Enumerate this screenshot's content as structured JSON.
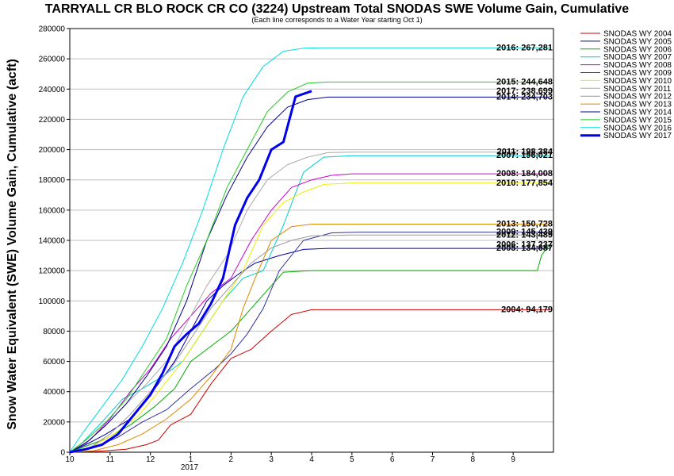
{
  "chart_data": {
    "type": "line",
    "title": "TARRYALL CR BLO ROCK CR CO (3224) Upstream Total SNODAS SWE Volume Gain, Cumulative",
    "subtitle": "(Each line corresponds to a Water Year starting Oct 1)",
    "ylabel": "Snow Water Equivalent (SWE) Volume Gain, Cumulative (acft)",
    "xlabel": "",
    "year_label": "2017",
    "x_ticks": [
      "10",
      "11",
      "12",
      "1",
      "2",
      "3",
      "4",
      "5",
      "6",
      "7",
      "8",
      "9"
    ],
    "x_range_month_index": [
      0,
      12
    ],
    "y_ticks": [
      0,
      20000,
      40000,
      60000,
      80000,
      100000,
      120000,
      140000,
      160000,
      180000,
      200000,
      220000,
      240000,
      260000,
      280000
    ],
    "ylim": [
      0,
      280000
    ],
    "grid": "horizontal",
    "legend_position": "right",
    "series": [
      {
        "name": "SNODAS WY 2004",
        "color": "#cc0000",
        "width": 1,
        "end_label": "2004: 94,179",
        "x": [
          0,
          0.8,
          1.4,
          1.9,
          2.2,
          2.5,
          3.0,
          3.5,
          4.0,
          4.5,
          5.0,
          5.5,
          6.0,
          6.5,
          7.0,
          8.0,
          9.0,
          11.9
        ],
        "y": [
          0,
          800,
          2000,
          5000,
          8000,
          18000,
          25000,
          45000,
          62000,
          68000,
          80000,
          91000,
          94179,
          94179,
          94179,
          94179,
          94179,
          94179
        ]
      },
      {
        "name": "SNODAS WY 2005",
        "color": "#0000aa",
        "width": 1,
        "end_label": "2005: 134,687",
        "x": [
          0,
          0.4,
          0.9,
          1.5,
          2.0,
          2.6,
          3.0,
          3.4,
          3.8,
          4.2,
          4.6,
          5.2,
          5.8,
          6.4,
          7.2,
          8.0,
          11.9
        ],
        "y": [
          0,
          5000,
          12000,
          22000,
          38000,
          60000,
          80000,
          100000,
          110000,
          118000,
          125000,
          130000,
          134000,
          134687,
          134687,
          134687,
          134687
        ]
      },
      {
        "name": "SNODAS WY 2006",
        "color": "#00aa00",
        "width": 1,
        "end_label": "2006: 137,237",
        "x": [
          0,
          0.4,
          0.9,
          1.5,
          2.1,
          2.6,
          3.0,
          3.5,
          4.0,
          4.5,
          5.0,
          5.3,
          6.0,
          7.0,
          8.0,
          9.0,
          11.6,
          11.7,
          11.9
        ],
        "y": [
          0,
          4000,
          9000,
          18000,
          30000,
          42000,
          60000,
          70000,
          80000,
          95000,
          110000,
          119000,
          120000,
          120000,
          120000,
          120000,
          120000,
          130000,
          137237
        ]
      },
      {
        "name": "SNODAS WY 2007",
        "color": "#00cccc",
        "width": 1,
        "end_label": "2007: 196,021",
        "x": [
          0,
          0.3,
          0.8,
          1.3,
          1.8,
          2.3,
          2.8,
          3.3,
          3.8,
          4.3,
          4.8,
          5.3,
          5.8,
          6.3,
          7.0,
          8.0,
          9.0,
          11.9
        ],
        "y": [
          0,
          6000,
          20000,
          35000,
          42000,
          50000,
          60000,
          80000,
          100000,
          115000,
          120000,
          150000,
          185000,
          195000,
          196021,
          196021,
          196021,
          196021
        ]
      },
      {
        "name": "SNODAS WY 2008",
        "color": "#cc00cc",
        "width": 1,
        "end_label": "2008: 184,008",
        "x": [
          0,
          0.5,
          1.0,
          1.5,
          2.0,
          2.5,
          3.0,
          3.5,
          4.0,
          4.5,
          5.0,
          5.5,
          6.0,
          6.5,
          7.0,
          8.0,
          11.9
        ],
        "y": [
          0,
          8000,
          22000,
          40000,
          55000,
          75000,
          90000,
          105000,
          115000,
          140000,
          160000,
          175000,
          180000,
          183000,
          184008,
          184008,
          184008
        ]
      },
      {
        "name": "SNODAS WY 2009",
        "color": "#333399",
        "width": 1,
        "end_label": "2009: 145,439",
        "x": [
          0,
          0.6,
          1.2,
          1.8,
          2.4,
          3.0,
          3.6,
          4.0,
          4.4,
          4.8,
          5.2,
          5.8,
          6.5,
          7.2,
          8.0,
          11.9
        ],
        "y": [
          0,
          3000,
          10000,
          20000,
          28000,
          42000,
          55000,
          65000,
          78000,
          95000,
          120000,
          140000,
          145000,
          145439,
          145439,
          145439
        ]
      },
      {
        "name": "SNODAS WY 2010",
        "color": "#eeee00",
        "width": 1,
        "end_label": "2010: 177,854",
        "x": [
          0,
          0.5,
          1.1,
          1.7,
          2.2,
          2.8,
          3.3,
          3.8,
          4.3,
          4.8,
          5.3,
          5.8,
          6.3,
          7.0,
          8.0,
          11.9
        ],
        "y": [
          0,
          3000,
          12000,
          24000,
          40000,
          60000,
          80000,
          100000,
          120000,
          150000,
          165000,
          172000,
          177000,
          177854,
          177854,
          177854
        ]
      },
      {
        "name": "SNODAS WY 2011",
        "color": "#aaaaaa",
        "width": 1,
        "end_label": "2011: 198,384",
        "x": [
          0,
          0.4,
          0.9,
          1.4,
          1.9,
          2.4,
          2.9,
          3.4,
          3.9,
          4.4,
          4.9,
          5.4,
          5.9,
          6.4,
          7.0,
          8.0,
          11.9
        ],
        "y": [
          0,
          6000,
          18000,
          32000,
          45000,
          60000,
          85000,
          110000,
          130000,
          160000,
          180000,
          190000,
          195000,
          198000,
          198384,
          198384,
          198384
        ]
      },
      {
        "name": "SNODAS WY 2012",
        "color": "#999999",
        "width": 1,
        "end_label": "2012: 143,489",
        "x": [
          0,
          0.5,
          1.0,
          1.5,
          2.0,
          2.5,
          3.0,
          3.5,
          4.0,
          4.5,
          5.0,
          5.5,
          6.0,
          7.0,
          8.0,
          11.9
        ],
        "y": [
          0,
          3000,
          12000,
          25000,
          40000,
          55000,
          75000,
          95000,
          110000,
          125000,
          135000,
          140000,
          143000,
          143489,
          143489,
          143489
        ]
      },
      {
        "name": "SNODAS WY 2013",
        "color": "#dd8800",
        "width": 1,
        "end_label": "2013: 150,728",
        "x": [
          0,
          0.6,
          1.2,
          1.8,
          2.4,
          3.0,
          3.5,
          4.0,
          4.3,
          4.6,
          5.0,
          5.5,
          6.0,
          7.0,
          8.0,
          11.9
        ],
        "y": [
          0,
          1000,
          5000,
          12000,
          22000,
          35000,
          50000,
          68000,
          95000,
          115000,
          140000,
          149000,
          150728,
          150728,
          150728,
          150728
        ]
      },
      {
        "name": "SNODAS WY 2014",
        "color": "#000088",
        "width": 1,
        "end_label": "2014: 234,703",
        "x": [
          0,
          0.4,
          0.9,
          1.4,
          1.9,
          2.4,
          2.9,
          3.4,
          3.9,
          4.4,
          4.9,
          5.4,
          5.9,
          6.4,
          7.0,
          8.0,
          11.9
        ],
        "y": [
          0,
          6000,
          18000,
          32000,
          50000,
          70000,
          100000,
          140000,
          170000,
          195000,
          215000,
          228000,
          233000,
          234703,
          234703,
          234703,
          234703
        ]
      },
      {
        "name": "SNODAS WY 2015",
        "color": "#22cc22",
        "width": 1,
        "end_label": "2015: 244,648",
        "x": [
          0,
          0.4,
          0.9,
          1.4,
          1.9,
          2.4,
          2.9,
          3.4,
          3.9,
          4.4,
          4.9,
          5.4,
          5.9,
          6.4,
          7.0,
          8.0,
          11.9
        ],
        "y": [
          0,
          8000,
          20000,
          35000,
          55000,
          75000,
          110000,
          140000,
          175000,
          200000,
          225000,
          238000,
          244000,
          244648,
          244648,
          244648,
          244648
        ]
      },
      {
        "name": "SNODAS WY 2016",
        "color": "#00dddd",
        "width": 1,
        "end_label": "2016: 267,281",
        "x": [
          0,
          0.3,
          0.8,
          1.3,
          1.8,
          2.3,
          2.8,
          3.3,
          3.8,
          4.3,
          4.8,
          5.3,
          5.8,
          6.3,
          7.0,
          8.0,
          11.9
        ],
        "y": [
          0,
          12000,
          30000,
          48000,
          70000,
          95000,
          125000,
          160000,
          200000,
          235000,
          255000,
          265000,
          267000,
          267281,
          267281,
          267281,
          267281
        ]
      },
      {
        "name": "SNODAS WY 2017",
        "color": "#0000ee",
        "width": 3,
        "end_label": "2017: 238,699",
        "x": [
          0,
          0.4,
          0.8,
          1.2,
          1.6,
          2.0,
          2.3,
          2.6,
          2.9,
          3.2,
          3.5,
          3.8,
          4.1,
          4.4,
          4.7,
          5.0,
          5.3,
          5.6,
          6.0
        ],
        "y": [
          0,
          2000,
          5000,
          12000,
          25000,
          38000,
          52000,
          70000,
          78000,
          85000,
          98000,
          115000,
          150000,
          168000,
          180000,
          200000,
          205000,
          235000,
          238699
        ]
      }
    ]
  },
  "legend_title": ""
}
